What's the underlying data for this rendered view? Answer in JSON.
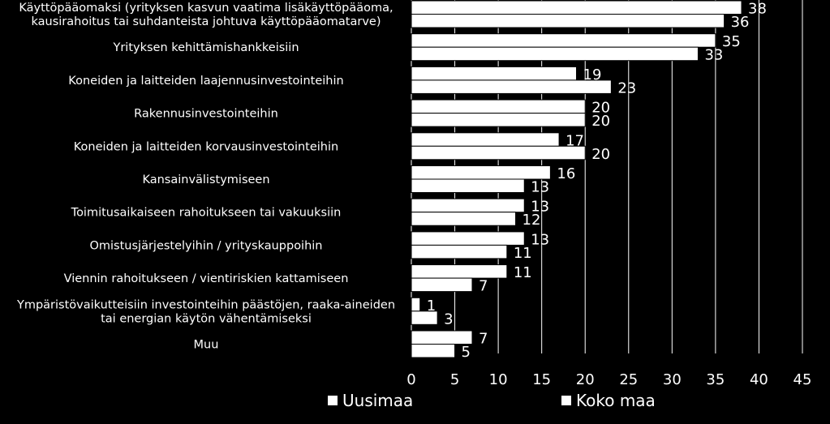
{
  "chart_data": {
    "type": "bar",
    "orientation": "horizontal",
    "categories": [
      [
        "Käyttöpääomaksi (yrityksen kasvun vaatima lisäkäyttöpääoma,",
        "kausirahoitus tai suhdanteista johtuva käyttöpääomatarve)"
      ],
      [
        "Yrityksen kehittämishankkeisiin"
      ],
      [
        "Koneiden ja laitteiden laajennusinvestointeihin"
      ],
      [
        "Rakennusinvestointeihin"
      ],
      [
        "Koneiden ja laitteiden korvausinvestointeihin"
      ],
      [
        "Kansainvälistymiseen"
      ],
      [
        "Toimitusaikaiseen rahoitukseen tai vakuuksiin"
      ],
      [
        "Omistusjärjestelyihin / yrityskauppoihin"
      ],
      [
        "Viennin rahoitukseen / vientiriskien kattamiseen"
      ],
      [
        "Ympäristövaikutteisiin investointeihin päästöjen, raaka-aineiden",
        "tai energian käytön vähentämiseksi"
      ],
      [
        "Muu"
      ]
    ],
    "series": [
      {
        "name": "Uusimaa",
        "values": [
          38,
          35,
          19,
          20,
          17,
          16,
          13,
          13,
          11,
          1,
          7
        ]
      },
      {
        "name": "Koko maa",
        "values": [
          36,
          33,
          23,
          20,
          20,
          13,
          12,
          11,
          7,
          3,
          5
        ]
      }
    ],
    "xlim": [
      0,
      45
    ],
    "xticks": [
      "0",
      "5",
      "10",
      "15",
      "20",
      "25",
      "30",
      "35",
      "40",
      "45"
    ],
    "grid": "vertical",
    "legend_position": "bottom",
    "colors": {
      "background": "#000000",
      "bar_fill": "#ffffff",
      "bar_stroke": "#000000",
      "grid": "#ffffff",
      "text": "#ffffff"
    }
  }
}
